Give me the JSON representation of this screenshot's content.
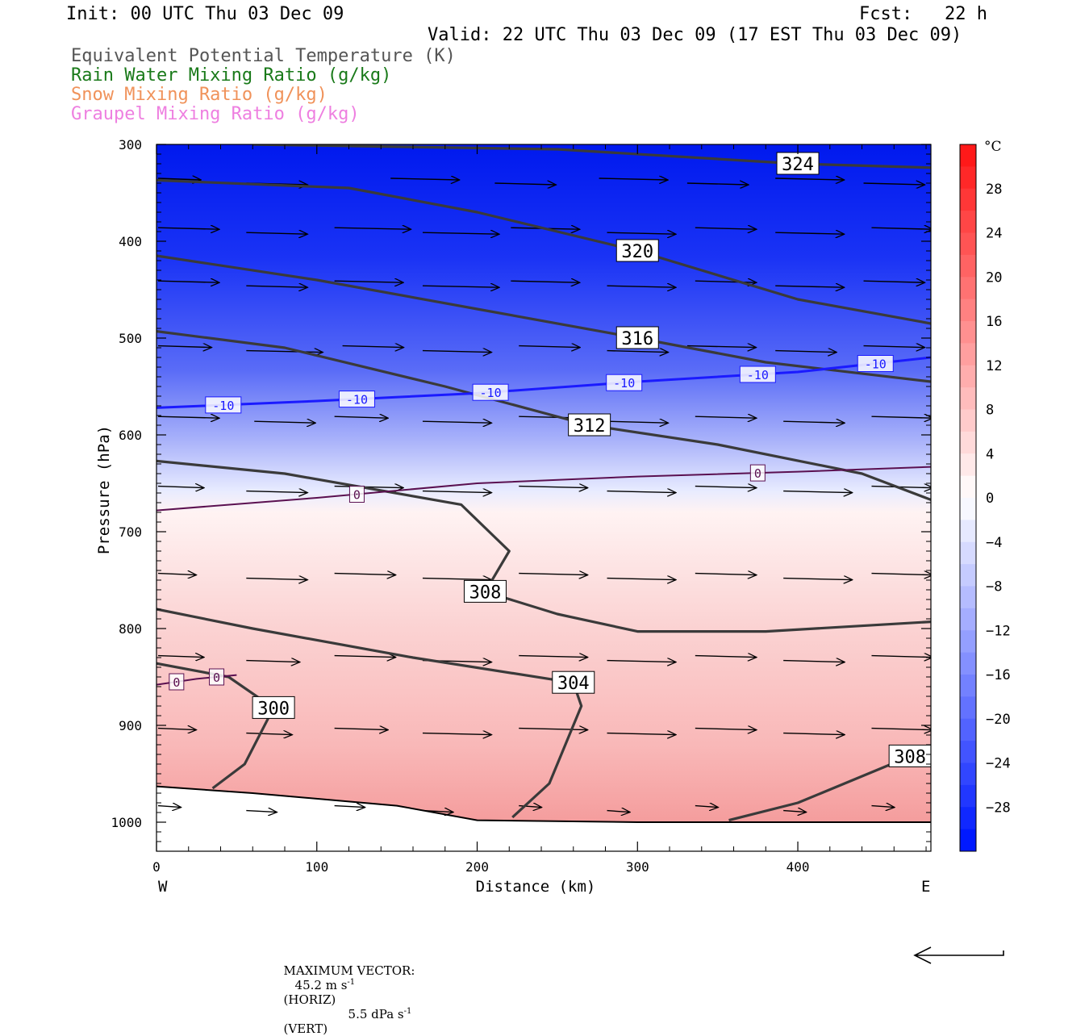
{
  "header": {
    "init": "Init: 00 UTC Thu 03 Dec 09",
    "fcst": "Fcst:   22 h",
    "valid": "Valid: 22 UTC Thu 03 Dec 09 (17 EST Thu 03 Dec 09)",
    "fields": [
      {
        "label": "Equivalent Potential Temperature (K)",
        "color": "#555555"
      },
      {
        "label": "Rain Water Mixing Ratio (g/kg)",
        "color": "#1a7a1a"
      },
      {
        "label": "Snow Mixing Ratio (g/kg)",
        "color": "#f0925a"
      },
      {
        "label": "Graupel Mixing Ratio (g/kg)",
        "color": "#ee7fe0"
      }
    ]
  },
  "chart_data": {
    "type": "cross-section",
    "xlabel": "Distance (km)",
    "ylabel": "Pressure (hPa)",
    "xlim": [
      0,
      483
    ],
    "ylim": [
      300,
      1030
    ],
    "x_ticks": [
      0,
      100,
      200,
      300,
      400
    ],
    "y_ticks": [
      300,
      400,
      500,
      600,
      700,
      800,
      900,
      1000
    ],
    "x_end_labels": {
      "left": "W",
      "right": "E"
    },
    "colorbar": {
      "unit": "°C",
      "tick_labels": [
        "28",
        "24",
        "20",
        "16",
        "12",
        "8",
        "4",
        "0",
        "-4",
        "-8",
        "-12",
        "-16",
        "-20",
        "-24",
        "-28"
      ],
      "range": [
        -32,
        32
      ],
      "cold_color": "#0000ff",
      "warm_color": "#ff1a1a"
    },
    "theta_e_contours": [
      {
        "label": "324",
        "points": [
          [
            60,
            300
          ],
          [
            250,
            305
          ],
          [
            400,
            320
          ],
          [
            483,
            324
          ]
        ]
      },
      {
        "label": "320",
        "points": [
          [
            0,
            337
          ],
          [
            120,
            345
          ],
          [
            200,
            370
          ],
          [
            300,
            410
          ],
          [
            400,
            460
          ],
          [
            483,
            485
          ]
        ]
      },
      {
        "label": "316",
        "points": [
          [
            0,
            415
          ],
          [
            100,
            440
          ],
          [
            200,
            470
          ],
          [
            300,
            500
          ],
          [
            380,
            525
          ],
          [
            483,
            545
          ]
        ]
      },
      {
        "label": "312",
        "points": [
          [
            0,
            493
          ],
          [
            80,
            510
          ],
          [
            180,
            550
          ],
          [
            270,
            590
          ],
          [
            350,
            610
          ],
          [
            440,
            640
          ],
          [
            483,
            667
          ]
        ]
      },
      {
        "label": "308",
        "points": [
          [
            0,
            627
          ],
          [
            80,
            640
          ],
          [
            190,
            672
          ],
          [
            220,
            720
          ],
          [
            205,
            762
          ],
          [
            250,
            785
          ],
          [
            300,
            803
          ],
          [
            380,
            803
          ],
          [
            483,
            793
          ]
        ]
      },
      {
        "label": "304",
        "points": [
          [
            0,
            780
          ],
          [
            60,
            800
          ],
          [
            160,
            830
          ],
          [
            260,
            856
          ],
          [
            265,
            880
          ],
          [
            245,
            960
          ],
          [
            222,
            995
          ]
        ]
      },
      {
        "label": "300",
        "points": [
          [
            0,
            836
          ],
          [
            45,
            850
          ],
          [
            73,
            882
          ],
          [
            55,
            940
          ],
          [
            35,
            965
          ]
        ]
      },
      {
        "label": "308",
        "points": [
          [
            357,
            998
          ],
          [
            400,
            980
          ],
          [
            470,
            932
          ],
          [
            483,
            930
          ]
        ]
      }
    ],
    "temperature_contours": [
      {
        "label": "-10",
        "value": -10,
        "color": "#1a1aff",
        "points": [
          [
            0,
            572
          ],
          [
            100,
            565
          ],
          [
            200,
            557
          ],
          [
            300,
            545
          ],
          [
            400,
            535
          ],
          [
            483,
            520
          ]
        ]
      },
      {
        "label": "0",
        "value": 0,
        "color": "#5a1050",
        "points": [
          [
            0,
            678
          ],
          [
            100,
            665
          ],
          [
            200,
            650
          ],
          [
            300,
            643
          ],
          [
            400,
            638
          ],
          [
            483,
            633
          ]
        ]
      },
      {
        "label": "0",
        "value": 0,
        "color": "#5a1050",
        "points": [
          [
            0,
            858
          ],
          [
            25,
            852
          ],
          [
            50,
            848
          ]
        ]
      }
    ],
    "terrain": [
      [
        0,
        963
      ],
      [
        60,
        970
      ],
      [
        150,
        983
      ],
      [
        200,
        998
      ],
      [
        300,
        1000
      ],
      [
        483,
        1000
      ]
    ],
    "vector_note": {
      "prefix": "MAXIMUM VECTOR:",
      "horiz": "45.2 m s",
      "horiz_unit": "(HORIZ)",
      "vert": "5.5 dPa s",
      "vert_unit": "(VERT)",
      "exponent": "-1"
    }
  }
}
